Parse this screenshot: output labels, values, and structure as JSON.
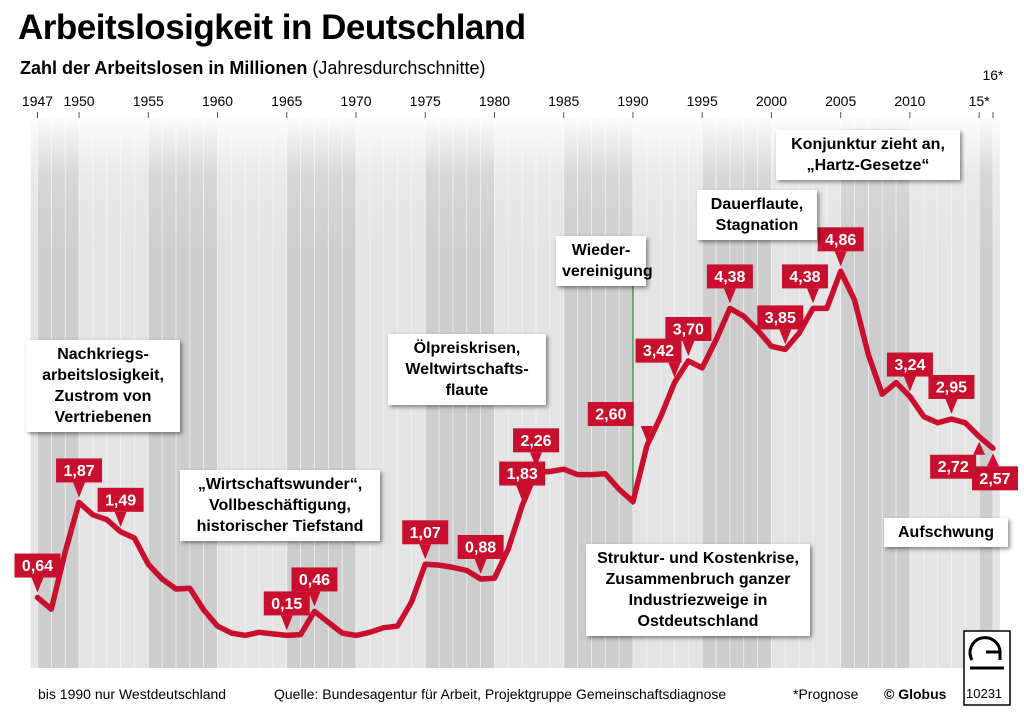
{
  "chart_data": {
    "type": "line",
    "title": "Arbeitslosigkeit in Deutschland",
    "subtitle": "Zahl der Arbeitslosen in Millionen",
    "subtitle_note": "(Jahresdurchschnitte)",
    "x": [
      1947,
      1948,
      1949,
      1950,
      1951,
      1952,
      1953,
      1954,
      1955,
      1956,
      1957,
      1958,
      1959,
      1960,
      1961,
      1962,
      1963,
      1964,
      1965,
      1966,
      1967,
      1968,
      1969,
      1970,
      1971,
      1972,
      1973,
      1974,
      1975,
      1976,
      1977,
      1978,
      1979,
      1980,
      1981,
      1982,
      1983,
      1984,
      1985,
      1986,
      1987,
      1988,
      1989,
      1990,
      1991,
      1992,
      1993,
      1994,
      1995,
      1996,
      1997,
      1998,
      1999,
      2000,
      2001,
      2002,
      2003,
      2004,
      2005,
      2006,
      2007,
      2008,
      2009,
      2010,
      2011,
      2012,
      2013,
      2014,
      2015,
      2016
    ],
    "values": [
      0.64,
      0.49,
      1.23,
      1.87,
      1.71,
      1.65,
      1.49,
      1.41,
      1.07,
      0.88,
      0.75,
      0.76,
      0.48,
      0.27,
      0.18,
      0.15,
      0.19,
      0.17,
      0.15,
      0.16,
      0.46,
      0.32,
      0.18,
      0.15,
      0.19,
      0.25,
      0.27,
      0.58,
      1.07,
      1.06,
      1.03,
      0.99,
      0.88,
      0.89,
      1.27,
      1.83,
      2.26,
      2.27,
      2.3,
      2.23,
      2.23,
      2.24,
      2.04,
      1.88,
      2.6,
      2.98,
      3.42,
      3.7,
      3.61,
      3.97,
      4.38,
      4.28,
      4.1,
      3.89,
      3.85,
      4.06,
      4.38,
      4.38,
      4.86,
      4.49,
      3.78,
      3.27,
      3.42,
      3.24,
      2.98,
      2.9,
      2.95,
      2.9,
      2.72,
      2.57
    ],
    "value_labels": [
      "0,64",
      null,
      null,
      "1,87",
      null,
      null,
      "1,49",
      null,
      null,
      null,
      null,
      null,
      null,
      null,
      null,
      null,
      null,
      null,
      "0,15",
      null,
      "0,46",
      null,
      null,
      null,
      null,
      null,
      null,
      null,
      "1,07",
      null,
      null,
      null,
      "0,88",
      null,
      null,
      "1,83",
      "2,26",
      null,
      null,
      null,
      null,
      null,
      null,
      null,
      "2,60",
      null,
      "3,42",
      "3,70",
      null,
      null,
      "4,38",
      null,
      null,
      null,
      "3,85",
      null,
      "4,38",
      null,
      "4,86",
      null,
      null,
      null,
      null,
      "3,24",
      null,
      null,
      "2,95",
      null,
      "2,72",
      "2,57"
    ],
    "color": "#c8102e",
    "xlim": [
      1947,
      2016
    ],
    "ylim": [
      0,
      6
    ],
    "xticks": [
      1947,
      1950,
      1955,
      1960,
      1965,
      1970,
      1975,
      1980,
      1985,
      1990,
      1995,
      2000,
      2005,
      2010,
      {
        "value": 2015,
        "label": "15*"
      },
      {
        "value": 2016,
        "label": "16*"
      }
    ],
    "annotations": [
      [
        "Nachkriegs-",
        "arbeitslosigkeit,",
        "Zustrom von",
        "Vertriebenen"
      ],
      [
        "„Wirtschaftswunder“,",
        "Vollbeschäftigung,",
        "historischer Tiefstand"
      ],
      [
        "Ölpreiskrisen,",
        "Weltwirtschafts-",
        "flaute"
      ],
      [
        "Wieder-",
        "vereinigung"
      ],
      [
        "Dauerflaute,",
        "Stagnation"
      ],
      [
        "Konjunktur zieht an,",
        "„Hartz-Gesetze“"
      ],
      [
        "Struktur- und Kostenkrise,",
        "Zusammenbruch ganzer",
        "Industriezweige in",
        "Ostdeutschland"
      ],
      [
        "Aufschwung"
      ]
    ],
    "footnotes": [
      "bis 1990 nur Westdeutschland",
      "Quelle: Bundesagentur für Arbeit, Projektgruppe Gemeinschaftsdiagnose",
      "*Prognose",
      "© Globus"
    ],
    "graphic_number": "10231"
  }
}
